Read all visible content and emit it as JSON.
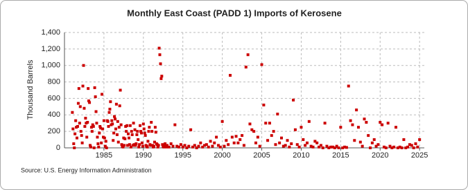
{
  "chart_data": {
    "type": "scatter",
    "title": "Monthly East Coast (PADD 1) Imports of Kerosene",
    "y_label": "Thousand Barrels",
    "source": "Source: U.S. Energy Information Administration",
    "xlim": [
      1980,
      2025.6
    ],
    "ylim": [
      0,
      1400
    ],
    "xticks": [
      1985,
      1990,
      1995,
      2000,
      2005,
      2010,
      2015,
      2020,
      2025
    ],
    "yticks": [
      0,
      200,
      400,
      600,
      800,
      {
        "value": 1000,
        "label": "1,000"
      },
      {
        "value": 1200,
        "label": "1,200"
      },
      {
        "value": 1400,
        "label": "1,400"
      }
    ],
    "grid": true,
    "x": [
      1981.0,
      1981.08,
      1981.17,
      1981.25,
      1981.33,
      1981.42,
      1981.5,
      1981.58,
      1981.67,
      1981.75,
      1981.83,
      1981.92,
      1982.0,
      1982.08,
      1982.17,
      1982.25,
      1982.33,
      1982.42,
      1982.5,
      1982.58,
      1982.67,
      1982.75,
      1982.83,
      1982.92,
      1983.0,
      1983.08,
      1983.17,
      1983.25,
      1983.33,
      1983.42,
      1983.5,
      1983.58,
      1983.67,
      1983.75,
      1983.83,
      1983.92,
      1984.0,
      1984.08,
      1984.17,
      1984.25,
      1984.33,
      1984.42,
      1984.5,
      1984.58,
      1984.67,
      1984.75,
      1984.83,
      1984.92,
      1985.0,
      1985.08,
      1985.17,
      1985.25,
      1985.33,
      1985.42,
      1985.5,
      1985.58,
      1985.67,
      1985.75,
      1985.83,
      1985.92,
      1986.0,
      1986.08,
      1986.17,
      1986.25,
      1986.33,
      1986.42,
      1986.5,
      1986.58,
      1986.67,
      1986.75,
      1986.83,
      1986.92,
      1987.0,
      1987.08,
      1987.17,
      1987.25,
      1987.33,
      1987.42,
      1987.5,
      1987.58,
      1987.67,
      1987.75,
      1987.83,
      1987.92,
      1988.0,
      1988.08,
      1988.17,
      1988.25,
      1988.33,
      1988.42,
      1988.5,
      1988.58,
      1988.67,
      1988.75,
      1988.83,
      1988.92,
      1989.0,
      1989.08,
      1989.17,
      1989.25,
      1989.33,
      1989.42,
      1989.5,
      1989.58,
      1989.67,
      1989.75,
      1989.83,
      1989.92,
      1990.0,
      1990.08,
      1990.17,
      1990.25,
      1990.33,
      1990.42,
      1990.5,
      1990.58,
      1990.67,
      1990.75,
      1990.83,
      1990.92,
      1991.0,
      1991.08,
      1991.17,
      1991.25,
      1991.33,
      1991.42,
      1991.5,
      1991.58,
      1991.67,
      1991.75,
      1991.83,
      1991.92,
      1992.0,
      1992.08,
      1992.17,
      1992.25,
      1992.33,
      1992.42,
      1992.5,
      1992.58,
      1992.67,
      1992.75,
      1992.83,
      1992.92,
      1993.0,
      1993.25,
      1993.5,
      1993.75,
      1994.0,
      1994.25,
      1994.5,
      1994.75,
      1995.0,
      1995.25,
      1995.5,
      1995.75,
      1996.0,
      1996.25,
      1996.5,
      1996.75,
      1997.0,
      1997.25,
      1997.5,
      1997.75,
      1998.0,
      1998.25,
      1998.5,
      1998.75,
      1999.0,
      1999.25,
      1999.5,
      1999.75,
      2000.0,
      2000.25,
      2000.5,
      2000.75,
      2001.0,
      2001.25,
      2001.5,
      2001.75,
      2002.0,
      2002.25,
      2002.5,
      2002.75,
      2003.0,
      2003.25,
      2003.5,
      2003.75,
      2004.0,
      2004.25,
      2004.5,
      2004.75,
      2005.0,
      2005.25,
      2005.5,
      2005.75,
      2006.0,
      2006.25,
      2006.5,
      2006.75,
      2007.0,
      2007.25,
      2007.5,
      2007.75,
      2008.0,
      2008.25,
      2008.5,
      2008.75,
      2009.0,
      2009.25,
      2009.5,
      2009.75,
      2010.0,
      2010.25,
      2010.5,
      2010.75,
      2011.0,
      2011.25,
      2011.5,
      2011.75,
      2012.0,
      2012.25,
      2012.5,
      2012.75,
      2013.0,
      2013.25,
      2013.5,
      2013.75,
      2014.0,
      2014.25,
      2014.5,
      2014.75,
      2015.0,
      2015.25,
      2015.5,
      2015.75,
      2016.0,
      2016.25,
      2016.5,
      2016.75,
      2017.0,
      2017.25,
      2017.5,
      2017.75,
      2018.0,
      2018.25,
      2018.5,
      2018.75,
      2019.0,
      2019.25,
      2019.5,
      2019.75,
      2020.0,
      2020.25,
      2020.5,
      2020.75,
      2021.0,
      2021.25,
      2021.5,
      2021.75,
      2022.0,
      2022.25,
      2022.5,
      2022.75,
      2023.0,
      2023.25,
      2023.5,
      2023.75,
      2024.0,
      2024.25,
      2024.5,
      2024.75,
      2025.0
    ],
    "color": "#cc0000",
    "values": [
      430,
      230,
      50,
      0,
      170,
      330,
      250,
      120,
      260,
      540,
      720,
      300,
      500,
      200,
      150,
      60,
      750,
      1000,
      480,
      260,
      360,
      300,
      130,
      310,
      720,
      570,
      550,
      30,
      10,
      250,
      200,
      280,
      260,
      0,
      730,
      620,
      440,
      300,
      130,
      50,
      10,
      180,
      260,
      240,
      60,
      650,
      230,
      130,
      330,
      120,
      20,
      80,
      0,
      330,
      320,
      260,
      430,
      470,
      560,
      280,
      330,
      290,
      90,
      180,
      380,
      350,
      230,
      530,
      160,
      320,
      70,
      250,
      510,
      700,
      280,
      40,
      20,
      10,
      120,
      30,
      110,
      260,
      200,
      270,
      30,
      170,
      120,
      40,
      270,
      10,
      200,
      160,
      30,
      300,
      40,
      220,
      30,
      50,
      160,
      200,
      100,
      10,
      40,
      270,
      200,
      180,
      60,
      20,
      290,
      230,
      180,
      150,
      30,
      20,
      10,
      80,
      200,
      250,
      40,
      30,
      310,
      200,
      30,
      10,
      20,
      70,
      250,
      190,
      50,
      40,
      10,
      30,
      1210,
      1130,
      1020,
      840,
      870,
      40,
      20,
      10,
      30,
      50,
      20,
      10,
      30,
      10,
      50,
      20,
      280,
      20,
      10,
      40,
      10,
      30,
      0,
      20,
      220,
      10,
      30,
      0,
      20,
      60,
      10,
      30,
      40,
      10,
      80,
      20,
      60,
      130,
      30,
      10,
      320,
      20,
      90,
      40,
      880,
      130,
      60,
      140,
      60,
      100,
      150,
      30,
      980,
      1130,
      290,
      220,
      200,
      60,
      130,
      20,
      1010,
      520,
      300,
      90,
      300,
      150,
      200,
      40,
      410,
      60,
      120,
      20,
      30,
      90,
      10,
      50,
      580,
      220,
      40,
      10,
      250,
      100,
      30,
      60,
      320,
      20,
      10,
      80,
      60,
      10,
      30,
      0,
      300,
      20,
      0,
      10,
      10,
      0,
      20,
      0,
      250,
      0,
      10,
      5,
      750,
      330,
      280,
      90,
      460,
      250,
      70,
      20,
      350,
      310,
      150,
      0,
      60,
      100,
      20,
      40,
      310,
      280,
      10,
      0,
      300,
      20,
      0,
      10,
      250,
      0,
      10,
      0,
      100,
      0,
      10,
      40,
      30,
      0,
      50,
      10,
      100
    ]
  }
}
